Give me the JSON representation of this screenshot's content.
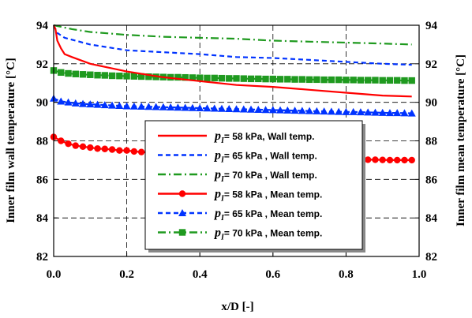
{
  "chart_data": {
    "type": "line",
    "xlabel": "x/D [-]",
    "ylabel_left": "Inner film wall temperature [°C]",
    "ylabel_right": "Inner film mean temperature [°C]",
    "xlim": [
      0,
      1.0
    ],
    "ylim": [
      82,
      94
    ],
    "x_ticks": [
      "0.0",
      "0.2",
      "0.4",
      "0.6",
      "0.8",
      "1.0"
    ],
    "y_ticks": [
      "82",
      "84",
      "86",
      "88",
      "90",
      "92",
      "94"
    ],
    "grid": true,
    "legend_position": "center-right",
    "legend_prefix": "p",
    "legend_subscript": "I",
    "series": [
      {
        "name": "= 58 kPa, Wall temp.",
        "color": "#ff0000",
        "dash": "solid",
        "marker": "none",
        "x": [
          0.0,
          0.005,
          0.01,
          0.02,
          0.03,
          0.05,
          0.1,
          0.2,
          0.3,
          0.4,
          0.5,
          0.6,
          0.7,
          0.8,
          0.9,
          0.98
        ],
        "y": [
          94.0,
          93.8,
          93.2,
          92.8,
          92.5,
          92.35,
          92.0,
          91.6,
          91.3,
          91.1,
          90.9,
          90.8,
          90.65,
          90.5,
          90.35,
          90.3
        ]
      },
      {
        "name": "= 65 kPa , Wall temp.",
        "color": "#0033ff",
        "dash": "dash",
        "marker": "none",
        "x": [
          0.0,
          0.01,
          0.03,
          0.1,
          0.2,
          0.3,
          0.4,
          0.5,
          0.6,
          0.7,
          0.8,
          0.9,
          0.98
        ],
        "y": [
          94.0,
          93.6,
          93.35,
          93.0,
          92.7,
          92.6,
          92.5,
          92.35,
          92.3,
          92.2,
          92.1,
          92.0,
          91.95
        ]
      },
      {
        "name": "= 70 kPa , Wall temp.",
        "color": "#1f9a1f",
        "dash": "dashdot",
        "marker": "none",
        "x": [
          0.0,
          0.05,
          0.1,
          0.2,
          0.3,
          0.4,
          0.5,
          0.6,
          0.7,
          0.8,
          0.9,
          0.98
        ],
        "y": [
          94.0,
          93.8,
          93.65,
          93.5,
          93.4,
          93.35,
          93.3,
          93.2,
          93.15,
          93.1,
          93.05,
          93.0
        ]
      },
      {
        "name": "= 58 kPa , Mean temp.",
        "color": "#ff0000",
        "dash": "solid",
        "marker": "circle",
        "x": [
          0.0,
          0.02,
          0.04,
          0.06,
          0.08,
          0.1,
          0.12,
          0.14,
          0.16,
          0.18,
          0.2,
          0.22,
          0.24,
          0.26,
          0.28,
          0.3,
          0.32,
          0.34,
          0.36,
          0.38,
          0.4,
          0.42,
          0.44,
          0.46,
          0.48,
          0.5,
          0.52,
          0.54,
          0.56,
          0.58,
          0.6,
          0.62,
          0.64,
          0.66,
          0.68,
          0.7,
          0.72,
          0.74,
          0.76,
          0.78,
          0.8,
          0.82,
          0.84,
          0.86,
          0.88,
          0.9,
          0.92,
          0.94,
          0.96,
          0.98
        ],
        "y": [
          88.2,
          88.0,
          87.85,
          87.75,
          87.7,
          87.65,
          87.6,
          87.58,
          87.55,
          87.5,
          87.5,
          87.45,
          87.42,
          87.4,
          87.38,
          87.35,
          87.33,
          87.3,
          87.3,
          87.28,
          87.25,
          87.23,
          87.22,
          87.2,
          87.2,
          87.18,
          87.17,
          87.15,
          87.15,
          87.13,
          87.12,
          87.1,
          87.1,
          87.1,
          87.08,
          87.08,
          87.07,
          87.06,
          87.05,
          87.05,
          87.04,
          87.03,
          87.03,
          87.02,
          87.02,
          87.01,
          87.0,
          87.0,
          87.0,
          87.0
        ]
      },
      {
        "name": "= 65 kPa , Mean temp.",
        "color": "#0033ff",
        "dash": "dash",
        "marker": "triangle",
        "x": [
          0.0,
          0.02,
          0.04,
          0.06,
          0.08,
          0.1,
          0.12,
          0.14,
          0.16,
          0.18,
          0.2,
          0.22,
          0.24,
          0.26,
          0.28,
          0.3,
          0.32,
          0.34,
          0.36,
          0.38,
          0.4,
          0.42,
          0.44,
          0.46,
          0.48,
          0.5,
          0.52,
          0.54,
          0.56,
          0.58,
          0.6,
          0.62,
          0.64,
          0.66,
          0.68,
          0.7,
          0.72,
          0.74,
          0.76,
          0.78,
          0.8,
          0.82,
          0.84,
          0.86,
          0.88,
          0.9,
          0.92,
          0.94,
          0.96,
          0.98
        ],
        "y": [
          90.2,
          90.05,
          90.0,
          89.95,
          89.92,
          89.9,
          89.88,
          89.86,
          89.84,
          89.82,
          89.8,
          89.79,
          89.78,
          89.77,
          89.76,
          89.75,
          89.74,
          89.73,
          89.72,
          89.71,
          89.7,
          89.69,
          89.68,
          89.67,
          89.66,
          89.65,
          89.64,
          89.63,
          89.62,
          89.61,
          89.6,
          89.59,
          89.58,
          89.57,
          89.56,
          89.55,
          89.54,
          89.53,
          89.52,
          89.51,
          89.5,
          89.5,
          89.49,
          89.48,
          89.47,
          89.46,
          89.45,
          89.45,
          89.44,
          89.43
        ]
      },
      {
        "name": "= 70 kPa , Mean temp.",
        "color": "#1f9a1f",
        "dash": "dashdot",
        "marker": "square",
        "x": [
          0.0,
          0.02,
          0.04,
          0.06,
          0.08,
          0.1,
          0.12,
          0.14,
          0.16,
          0.18,
          0.2,
          0.22,
          0.24,
          0.26,
          0.28,
          0.3,
          0.32,
          0.34,
          0.36,
          0.38,
          0.4,
          0.42,
          0.44,
          0.46,
          0.48,
          0.5,
          0.52,
          0.54,
          0.56,
          0.58,
          0.6,
          0.62,
          0.64,
          0.66,
          0.68,
          0.7,
          0.72,
          0.74,
          0.76,
          0.78,
          0.8,
          0.82,
          0.84,
          0.86,
          0.88,
          0.9,
          0.92,
          0.94,
          0.96,
          0.98
        ],
        "y": [
          91.65,
          91.55,
          91.5,
          91.47,
          91.45,
          91.43,
          91.41,
          91.4,
          91.38,
          91.37,
          91.36,
          91.35,
          91.34,
          91.33,
          91.32,
          91.31,
          91.3,
          91.3,
          91.29,
          91.28,
          91.27,
          91.26,
          91.26,
          91.25,
          91.24,
          91.24,
          91.23,
          91.22,
          91.22,
          91.21,
          91.21,
          91.2,
          91.2,
          91.19,
          91.19,
          91.18,
          91.18,
          91.17,
          91.17,
          91.17,
          91.16,
          91.16,
          91.15,
          91.15,
          91.15,
          91.14,
          91.14,
          91.14,
          91.13,
          91.13
        ]
      }
    ]
  }
}
